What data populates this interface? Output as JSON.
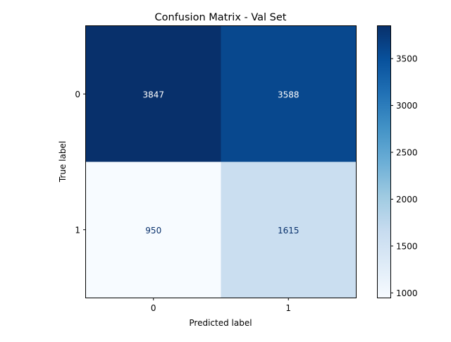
{
  "chart_data": {
    "type": "heatmap",
    "title": "Confusion Matrix - Val Set",
    "xlabel": "Predicted label",
    "ylabel": "True label",
    "x_categories": [
      "0",
      "1"
    ],
    "y_categories": [
      "0",
      "1"
    ],
    "values": [
      [
        3847,
        3588
      ],
      [
        950,
        1615
      ]
    ],
    "colormap": "Blues",
    "colorbar": {
      "range": [
        950,
        3847
      ],
      "ticks": [
        1000,
        1500,
        2000,
        2500,
        3000,
        3500
      ]
    },
    "colors": {
      "cmap_stops": [
        "#f7fbff",
        "#deebf7",
        "#c6dbef",
        "#9ecae1",
        "#6baed6",
        "#4292c6",
        "#2171b5",
        "#08519c",
        "#08306b"
      ],
      "text_dark": "#08306b",
      "text_light": "#ffffff"
    }
  }
}
